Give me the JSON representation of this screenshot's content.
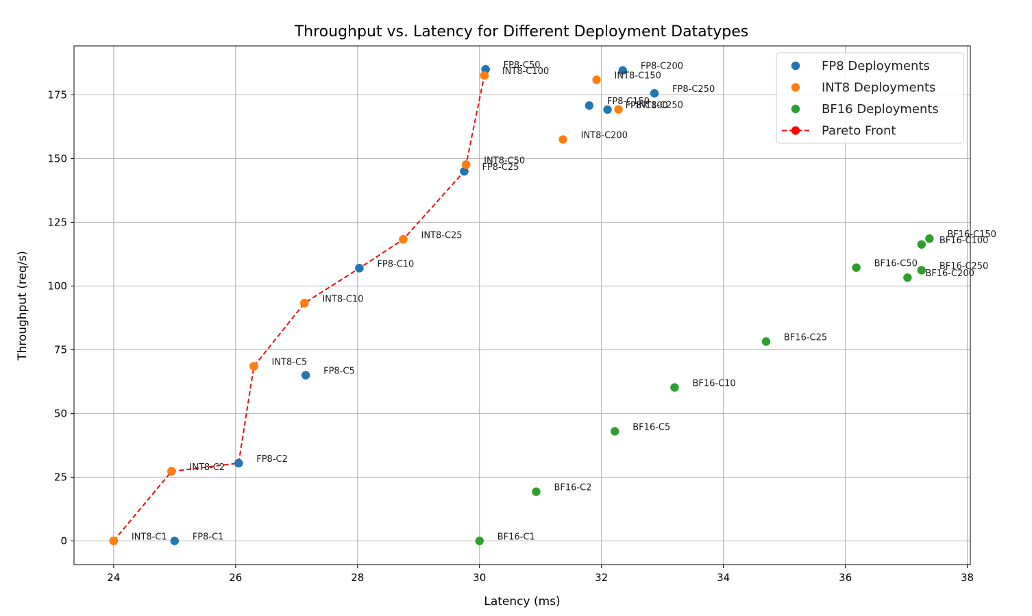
{
  "chart_data": {
    "type": "scatter",
    "title": "Throughput vs. Latency for Different Deployment Datatypes",
    "xlabel": "Latency (ms)",
    "ylabel": "Throughput (req/s)",
    "xlim": [
      23.35,
      38.05
    ],
    "ylim": [
      -9.3,
      194.2
    ],
    "xticks": [
      24,
      26,
      28,
      30,
      32,
      34,
      36,
      38
    ],
    "yticks": [
      0,
      25,
      50,
      75,
      100,
      125,
      150,
      175
    ],
    "grid": true,
    "legend_position": "top-right",
    "colors": {
      "FP8": "#1f77b4",
      "INT8": "#ff7f0e",
      "BF16": "#2ca02c",
      "Pareto": "#ff0000"
    },
    "series": [
      {
        "name": "FP8 Deployments",
        "color_key": "FP8",
        "points": [
          {
            "label": "FP8-C1",
            "x": 25.0,
            "y": 0.0
          },
          {
            "label": "FP8-C2",
            "x": 26.05,
            "y": 30.5
          },
          {
            "label": "FP8-C5",
            "x": 27.15,
            "y": 65.0
          },
          {
            "label": "FP8-C10",
            "x": 28.03,
            "y": 107.0
          },
          {
            "label": "FP8-C25",
            "x": 29.75,
            "y": 145.0
          },
          {
            "label": "FP8-C50",
            "x": 30.1,
            "y": 185.0
          },
          {
            "label": "FP8-C150",
            "x": 31.8,
            "y": 170.8
          },
          {
            "label": "FP8-C100",
            "x": 32.1,
            "y": 169.2
          },
          {
            "label": "FP8-C200",
            "x": 32.35,
            "y": 184.6
          },
          {
            "label": "FP8-C250",
            "x": 32.87,
            "y": 175.6
          }
        ]
      },
      {
        "name": "INT8 Deployments",
        "color_key": "INT8",
        "points": [
          {
            "label": "INT8-C1",
            "x": 24.0,
            "y": 0.0
          },
          {
            "label": "INT8-C2",
            "x": 24.95,
            "y": 27.3
          },
          {
            "label": "INT8-C5",
            "x": 26.3,
            "y": 68.5
          },
          {
            "label": "INT8-C10",
            "x": 27.13,
            "y": 93.3
          },
          {
            "label": "INT8-C25",
            "x": 28.75,
            "y": 118.3
          },
          {
            "label": "INT8-C50",
            "x": 29.78,
            "y": 147.6
          },
          {
            "label": "INT8-C100",
            "x": 30.08,
            "y": 182.6
          },
          {
            "label": "INT8-C150",
            "x": 31.92,
            "y": 180.9
          },
          {
            "label": "INT8-C200",
            "x": 31.37,
            "y": 157.5
          },
          {
            "label": "INT8-C250",
            "x": 32.28,
            "y": 169.3
          }
        ]
      },
      {
        "name": "BF16 Deployments",
        "color_key": "BF16",
        "points": [
          {
            "label": "BF16-C1",
            "x": 30.0,
            "y": 0.0
          },
          {
            "label": "BF16-C2",
            "x": 30.93,
            "y": 19.3
          },
          {
            "label": "BF16-C5",
            "x": 32.22,
            "y": 43.0
          },
          {
            "label": "BF16-C10",
            "x": 33.2,
            "y": 60.2
          },
          {
            "label": "BF16-C25",
            "x": 34.7,
            "y": 78.2
          },
          {
            "label": "BF16-C50",
            "x": 36.18,
            "y": 107.2
          },
          {
            "label": "BF16-C100",
            "x": 37.25,
            "y": 116.3
          },
          {
            "label": "BF16-C150",
            "x": 37.38,
            "y": 118.6
          },
          {
            "label": "BF16-C200",
            "x": 37.02,
            "y": 103.3
          },
          {
            "label": "BF16-C250",
            "x": 37.25,
            "y": 106.2
          }
        ]
      }
    ],
    "pareto_front": {
      "name": "Pareto Front",
      "color_key": "Pareto",
      "points": [
        {
          "x": 24.0,
          "y": 0.0
        },
        {
          "x": 24.95,
          "y": 27.3
        },
        {
          "x": 26.05,
          "y": 30.5
        },
        {
          "x": 26.3,
          "y": 68.5
        },
        {
          "x": 27.13,
          "y": 93.3
        },
        {
          "x": 28.03,
          "y": 107.0
        },
        {
          "x": 28.75,
          "y": 118.3
        },
        {
          "x": 29.75,
          "y": 145.0
        },
        {
          "x": 29.78,
          "y": 147.6
        },
        {
          "x": 30.08,
          "y": 182.6
        },
        {
          "x": 30.1,
          "y": 185.0
        }
      ]
    }
  }
}
